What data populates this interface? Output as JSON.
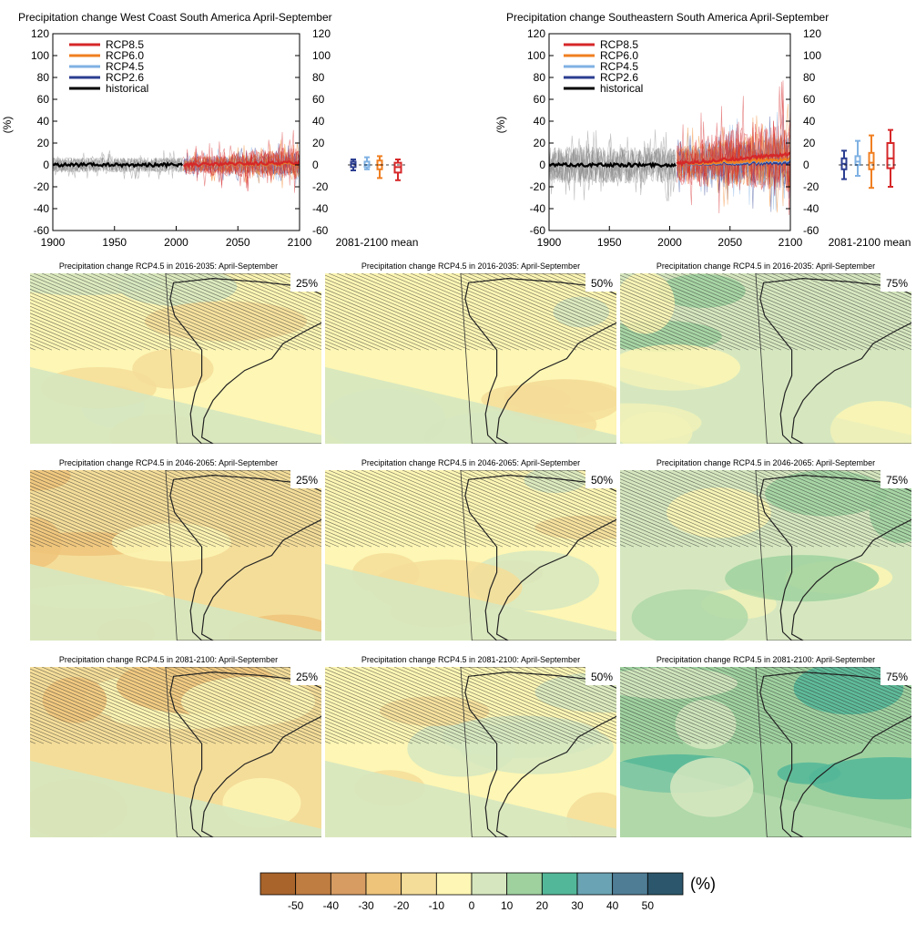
{
  "chart_data": {
    "timeseries": [
      {
        "type": "line",
        "title": "Precipitation change West Coast South America April-September",
        "ylabel": "(%)",
        "xlim": [
          1900,
          2100
        ],
        "ylim": [
          -60,
          120
        ],
        "x_ticks": [
          1900,
          1950,
          2000,
          2050,
          2100
        ],
        "y_ticks": [
          -60,
          -40,
          -20,
          0,
          20,
          40,
          60,
          80,
          100,
          120
        ],
        "legend_position": "top-left",
        "series": [
          {
            "name": "RCP8.5",
            "color": "#d62728",
            "x": [
              2006,
              2100
            ],
            "y": [
              0,
              2
            ],
            "spread": 18
          },
          {
            "name": "RCP6.0",
            "color": "#f07f21",
            "x": [
              2006,
              2100
            ],
            "y": [
              0,
              1
            ],
            "spread": 14
          },
          {
            "name": "RCP4.5",
            "color": "#7fb1e3",
            "x": [
              2006,
              2100
            ],
            "y": [
              0,
              1
            ],
            "spread": 13
          },
          {
            "name": "RCP2.6",
            "color": "#2c3e91",
            "x": [
              2006,
              2100
            ],
            "y": [
              0,
              1
            ],
            "spread": 12
          },
          {
            "name": "historical",
            "color": "#000000",
            "x": [
              1900,
              2005
            ],
            "y": [
              0,
              0
            ],
            "spread": 14
          }
        ],
        "boxplot": {
          "label": "2081-2100 mean",
          "boxes": [
            {
              "series": "RCP2.6",
              "min": -5,
              "q1": -2,
              "median": 1,
              "q3": 3,
              "max": 5
            },
            {
              "series": "RCP4.5",
              "min": -4,
              "q1": -2,
              "median": 0,
              "q3": 3,
              "max": 7
            },
            {
              "series": "RCP6.0",
              "min": -12,
              "q1": -4,
              "median": 0,
              "q3": 4,
              "max": 8
            },
            {
              "series": "RCP8.5",
              "min": -14,
              "q1": -7,
              "median": -2,
              "q3": 2,
              "max": 5
            }
          ]
        }
      },
      {
        "type": "line",
        "title": "Precipitation change Southeastern South America April-September",
        "ylabel": "(%)",
        "xlim": [
          1900,
          2100
        ],
        "ylim": [
          -60,
          120
        ],
        "x_ticks": [
          1900,
          1950,
          2000,
          2050,
          2100
        ],
        "y_ticks": [
          -60,
          -40,
          -20,
          0,
          20,
          40,
          60,
          80,
          100,
          120
        ],
        "legend_position": "top-left",
        "series": [
          {
            "name": "RCP8.5",
            "color": "#d62728",
            "x": [
              2006,
              2100
            ],
            "y": [
              1,
              10
            ],
            "spread": 40
          },
          {
            "name": "RCP6.0",
            "color": "#f07f21",
            "x": [
              2006,
              2100
            ],
            "y": [
              1,
              5
            ],
            "spread": 32
          },
          {
            "name": "RCP4.5",
            "color": "#7fb1e3",
            "x": [
              2006,
              2100
            ],
            "y": [
              1,
              4
            ],
            "spread": 30
          },
          {
            "name": "RCP2.6",
            "color": "#2c3e91",
            "x": [
              2006,
              2100
            ],
            "y": [
              1,
              2
            ],
            "spread": 28
          },
          {
            "name": "historical",
            "color": "#000000",
            "x": [
              1900,
              2005
            ],
            "y": [
              0,
              0
            ],
            "spread": 35
          }
        ],
        "boxplot": {
          "label": "2081-2100 mean",
          "boxes": [
            {
              "series": "RCP2.6",
              "min": -13,
              "q1": -4,
              "median": 1,
              "q3": 6,
              "max": 13
            },
            {
              "series": "RCP4.5",
              "min": -10,
              "q1": 0,
              "median": 3,
              "q3": 8,
              "max": 22
            },
            {
              "series": "RCP6.0",
              "min": -21,
              "q1": -4,
              "median": 2,
              "q3": 11,
              "max": 27
            },
            {
              "series": "RCP8.5",
              "min": -20,
              "q1": -3,
              "median": 6,
              "q3": 20,
              "max": 32
            }
          ]
        }
      }
    ],
    "maps": {
      "type": "heatmap",
      "row_titles": [
        "Precipitation change RCP4.5 in 2016-2035: April-September",
        "Precipitation change RCP4.5 in 2046-2065: April-September",
        "Precipitation change RCP4.5 in 2081-2100: April-September"
      ],
      "column_labels": [
        "25%",
        "50%",
        "75%"
      ],
      "levels": [
        [
          -5,
          -5,
          5
        ],
        [
          -15,
          -5,
          5
        ],
        [
          -15,
          -5,
          15
        ]
      ]
    },
    "colorbar": {
      "unit": "(%)",
      "tick_labels": [
        "-50",
        "-40",
        "-30",
        "-20",
        "-10",
        "0",
        "10",
        "20",
        "30",
        "40",
        "50"
      ],
      "colors": [
        "#a8642b",
        "#c07d41",
        "#d69c62",
        "#eec47a",
        "#f4dd99",
        "#fdf6b4",
        "#d6e7bf",
        "#9fd19f",
        "#52b798",
        "#6aa3b3",
        "#4f7d95",
        "#2c566c"
      ]
    }
  }
}
